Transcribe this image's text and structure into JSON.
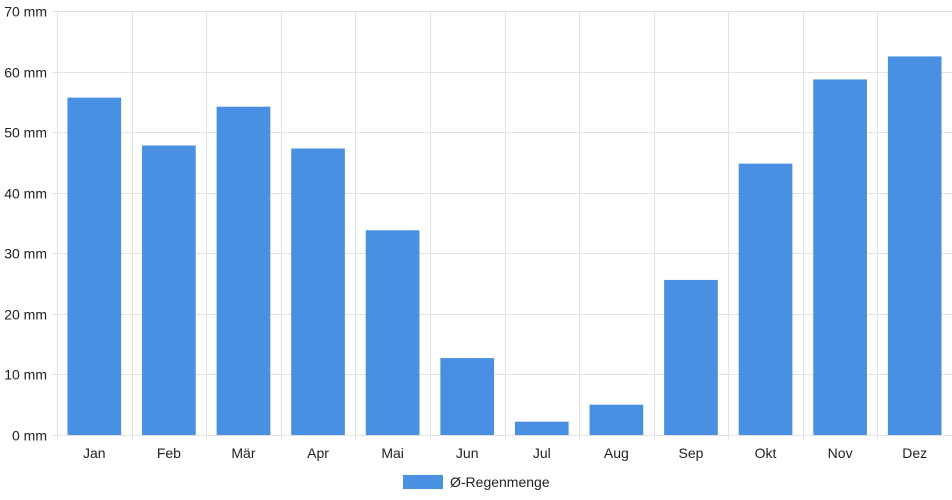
{
  "chart_data": {
    "type": "bar",
    "categories": [
      "Jan",
      "Feb",
      "Mär",
      "Apr",
      "Mai",
      "Jun",
      "Jul",
      "Aug",
      "Sep",
      "Okt",
      "Nov",
      "Dez"
    ],
    "series": [
      {
        "name": "Ø-Regenmenge",
        "color": "#4a90e2",
        "values": [
          55.7,
          47.8,
          54.2,
          47.3,
          33.8,
          12.7,
          2.2,
          5.0,
          25.6,
          44.8,
          58.7,
          62.5
        ]
      }
    ],
    "ylim": [
      0,
      70
    ],
    "yticks": [
      0,
      10,
      20,
      30,
      40,
      50,
      60,
      70
    ],
    "ytick_labels": [
      "0 mm",
      "10 mm",
      "20 mm",
      "30 mm",
      "40 mm",
      "50 mm",
      "60 mm",
      "70 mm"
    ],
    "grid": true,
    "legend_position": "bottom-center",
    "gridline_color": "#e2e2e2"
  }
}
